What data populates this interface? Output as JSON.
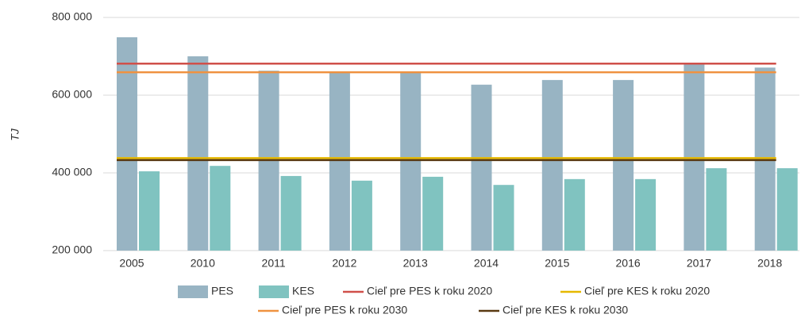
{
  "chart_data": {
    "type": "bar",
    "y_label": "TJ",
    "categories": [
      "2005",
      "2010",
      "2011",
      "2012",
      "2013",
      "2014",
      "2015",
      "2016",
      "2017",
      "2018"
    ],
    "series": [
      {
        "name": "PES",
        "color": "#98b4c3",
        "values": [
          749000,
          700000,
          663000,
          659000,
          659000,
          627000,
          639000,
          639000,
          680000,
          671000
        ]
      },
      {
        "name": "KES",
        "color": "#80c3c0",
        "values": [
          404000,
          418000,
          392000,
          380000,
          390000,
          369000,
          384000,
          384000,
          412000,
          412000
        ]
      }
    ],
    "reference_lines": [
      {
        "name": "Cieľ pre PES k roku 2020",
        "color": "#d0504a",
        "value": 681000
      },
      {
        "name": "Cieľ pre KES k roku 2020",
        "color": "#e6b800",
        "value": 438000
      },
      {
        "name": "Cieľ pre PES k roku 2030",
        "color": "#ef9240",
        "value": 659000
      },
      {
        "name": "Cieľ pre KES k roku 2030",
        "color": "#5a3a12",
        "value": 433000
      }
    ],
    "ylim": [
      200000,
      800000
    ],
    "yticks": [
      {
        "value": 200000,
        "label": "200 000"
      },
      {
        "value": 400000,
        "label": "400 000"
      },
      {
        "value": 600000,
        "label": "600 000"
      },
      {
        "value": 800000,
        "label": "800 000"
      }
    ],
    "grid": true
  }
}
